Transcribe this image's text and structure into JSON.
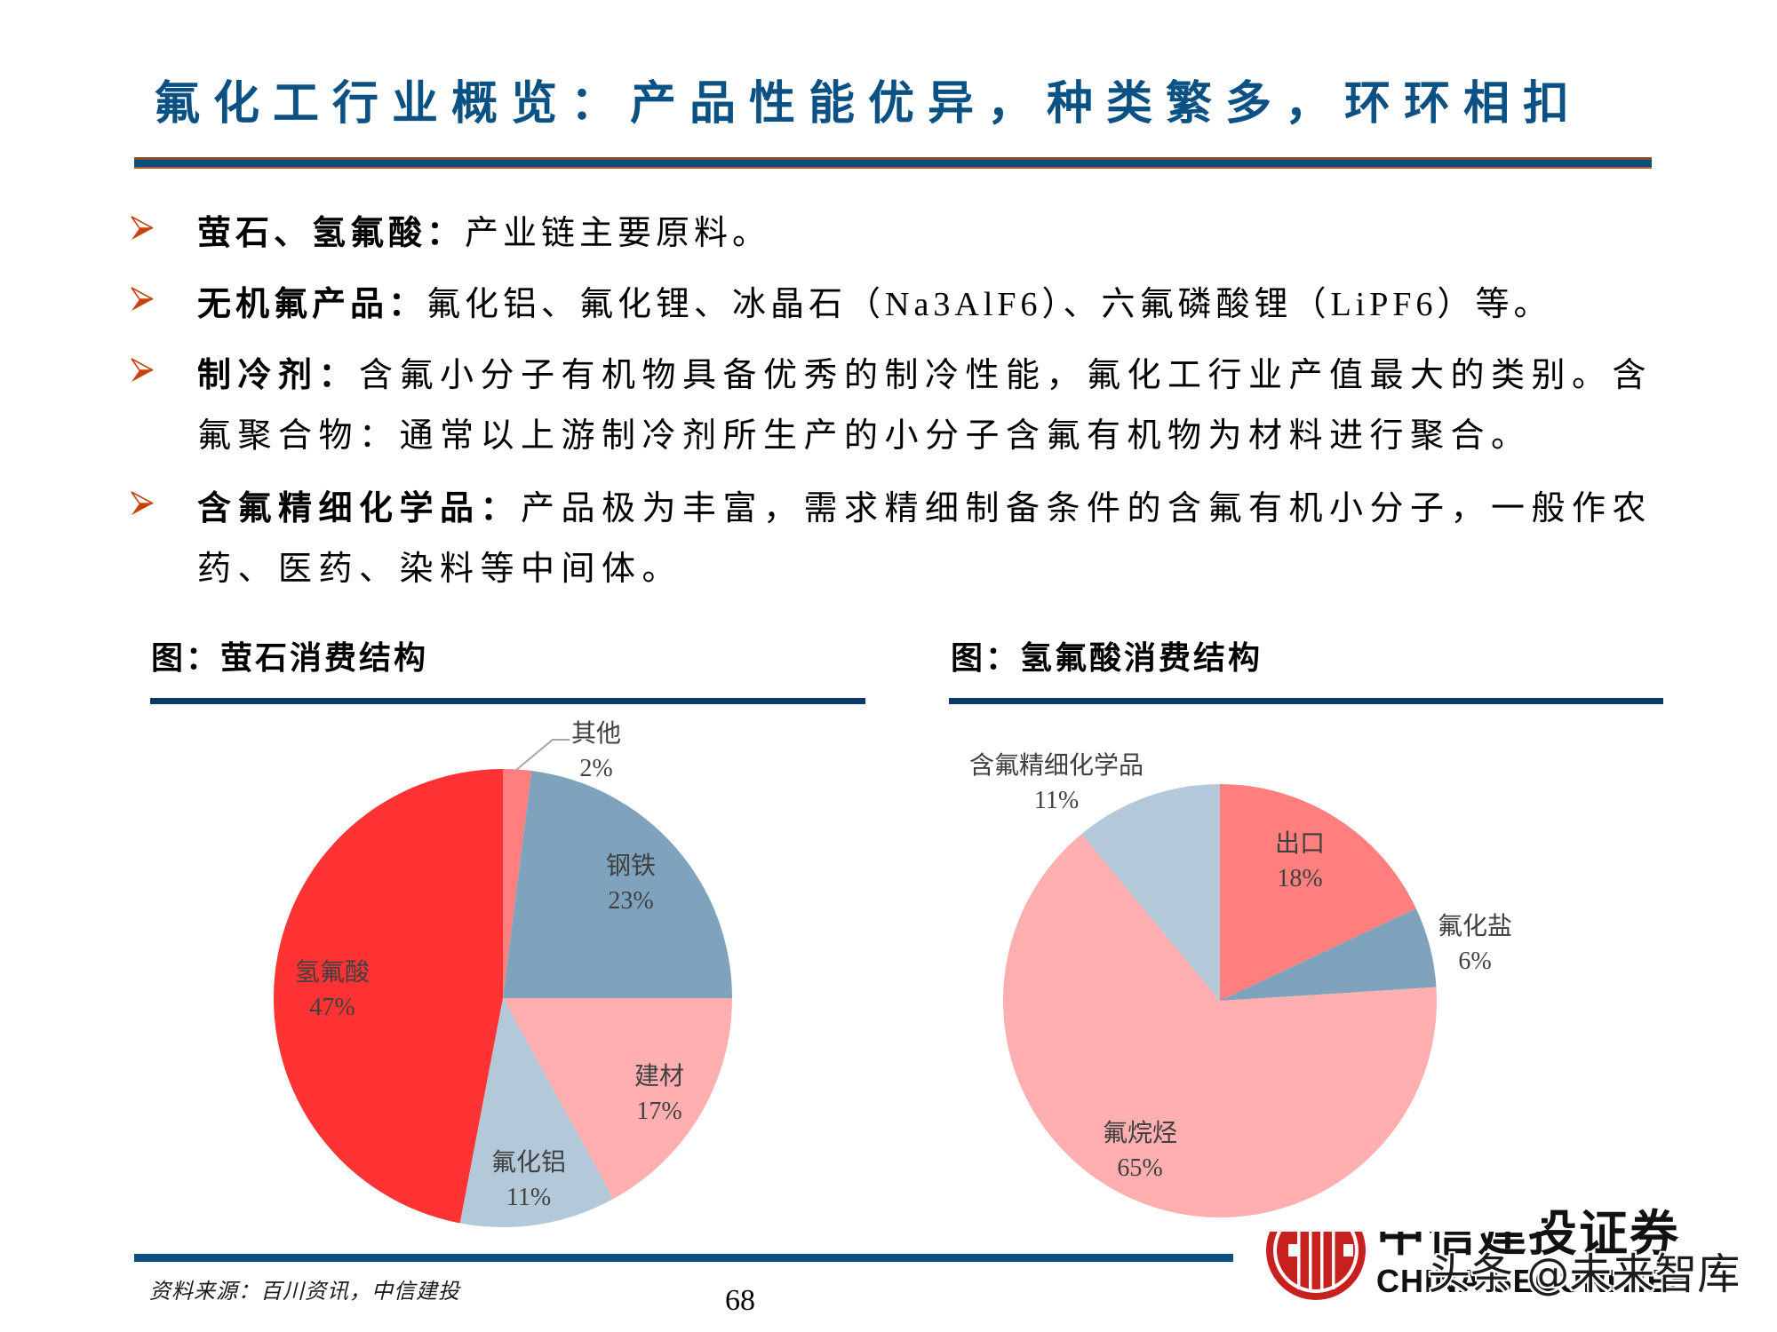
{
  "slide": {
    "title": "氟化工行业概览：产品性能优异，种类繁多，环环相扣",
    "source_note": "资料来源：百川资讯，中信建投",
    "page_number": "68"
  },
  "bullets": [
    {
      "icon": "arrow-bullet",
      "label": "萤石、氢氟酸：",
      "lines": [
        "产业链主要原料。"
      ]
    },
    {
      "icon": "arrow-bullet",
      "label": "无机氟产品：",
      "lines": [
        "氟化铝、氟化锂、冰晶石（Na3AlF6）、六氟磷酸锂（LiPF6）等。"
      ]
    },
    {
      "icon": "arrow-bullet",
      "label": "制冷剂：",
      "lines": [
        "含氟小分子有机物具备优秀的制冷性能，氟化工行业产值最大的类别。含",
        "氟聚合物：通常以上游制冷剂所生产的小分子含氟有机物为材料进行聚合。"
      ]
    },
    {
      "icon": "arrow-bullet",
      "label": "含氟精细化学品：",
      "lines": [
        "产品极为丰富，需求精细制备条件的含氟有机小分子，一般作农",
        "药、医药、染料等中间体。"
      ]
    }
  ],
  "chart_data": [
    {
      "type": "pie",
      "title": "图：萤石消费结构",
      "start_angle_deg": 0,
      "direction": "clockwise",
      "unit": "%",
      "legend": "none (data labels on slices)",
      "slices": [
        {
          "label": "其他",
          "value": 2,
          "pct_label": "2%",
          "color": "#FF7F7F",
          "label_position": "outside"
        },
        {
          "label": "钢铁",
          "value": 23,
          "pct_label": "23%",
          "color": "#7FA3BD",
          "label_position": "inside"
        },
        {
          "label": "建材",
          "value": 17,
          "pct_label": "17%",
          "color": "#FFAFAF",
          "label_position": "inside"
        },
        {
          "label": "氟化铝",
          "value": 11,
          "pct_label": "11%",
          "color": "#B3C9D9",
          "label_position": "inside"
        },
        {
          "label": "氢氟酸",
          "value": 47,
          "pct_label": "47%",
          "color": "#FF3333",
          "label_position": "inside"
        }
      ]
    },
    {
      "type": "pie",
      "title": "图：氢氟酸消费结构",
      "start_angle_deg": 0,
      "direction": "clockwise",
      "unit": "%",
      "legend": "none (data labels on slices)",
      "slices": [
        {
          "label": "出口",
          "value": 18,
          "pct_label": "18%",
          "color": "#FF7F7F",
          "label_position": "inside"
        },
        {
          "label": "氟化盐",
          "value": 6,
          "pct_label": "6%",
          "color": "#7FA3BD",
          "label_position": "outside"
        },
        {
          "label": "氟烷烃",
          "value": 65,
          "pct_label": "65%",
          "color": "#FFAFAF",
          "label_position": "inside"
        },
        {
          "label": "含氟精细化学品",
          "value": 11,
          "pct_label": "11%",
          "color": "#B3C9D9",
          "label_position": "outside"
        }
      ]
    }
  ],
  "logo": {
    "emblem": "CITIC",
    "name_cn": "中信建投证券",
    "name_en": "CHINA SECURITIES"
  },
  "watermark": {
    "text": "头条 @未来智库"
  },
  "colors": {
    "title": "#0C5183",
    "rule_blue": "#0B4F7F",
    "rule_brown_top": "#8A4A2C",
    "rule_brown_bottom": "#B55E2D",
    "bullet_arrow": "#C8410B",
    "section_rule": "#0A3868",
    "logo_red": "#C8201E",
    "label_text": "#404040",
    "leader_line": "#A6A6A6"
  }
}
